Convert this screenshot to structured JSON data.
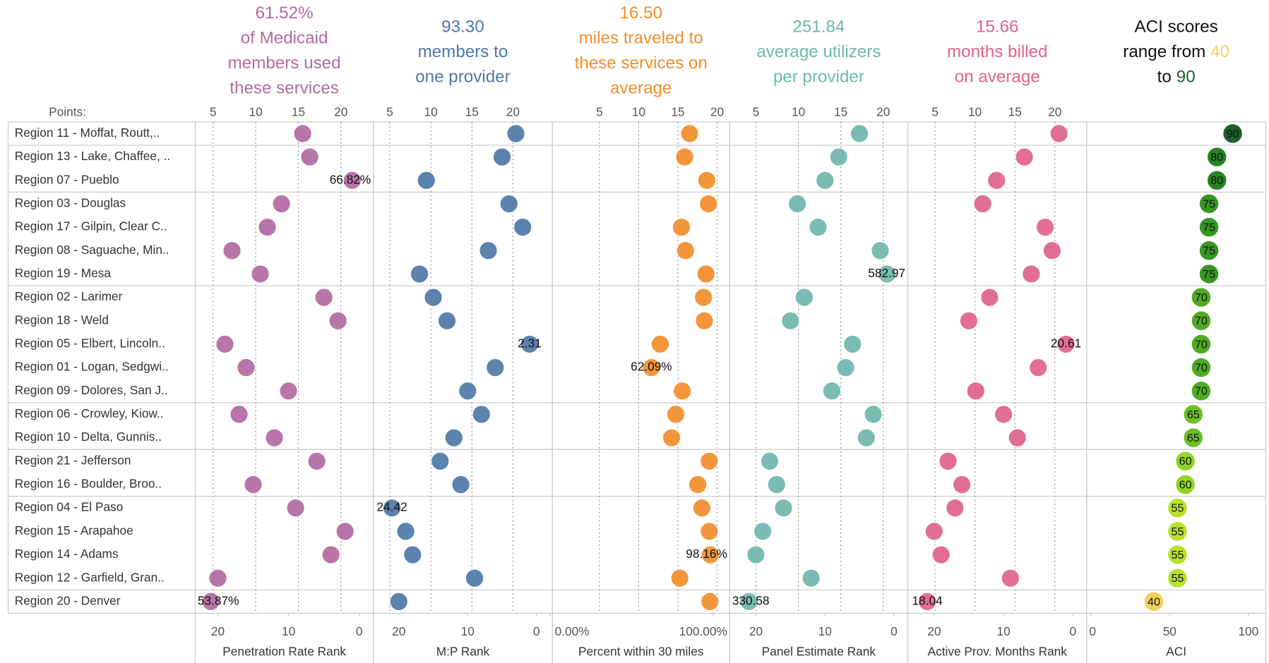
{
  "chart_data": [
    {
      "type": "dot",
      "title": "61.52%",
      "subtitle": [
        "of Medicaid",
        "members used",
        "these services"
      ],
      "points_label": "Points:",
      "categories": [
        "Region 11 - Moffat, Routt,..",
        "Region 13 - Lake, Chaffee, ..",
        "Region 07 - Pueblo",
        "Region 03 - Douglas",
        "Region 17 - Gilpin, Clear C..",
        "Region 08 - Saguache, Min..",
        "Region 19 - Mesa",
        "Region 02 - Larimer",
        "Region 18 - Weld",
        "Region 05 - Elbert, Lincoln..",
        "Region 01 - Logan, Sedgwi..",
        "Region 09 - Dolores, San J..",
        "Region 06 - Crowley, Kiow..",
        "Region 10 - Delta, Gunnis..",
        "Region 21 - Jefferson",
        "Region 16 - Boulder, Broo..",
        "Region 04 - El Paso",
        "Region 15 - Arapahoe",
        "Region 14 - Adams",
        "Region 12 - Garfield, Gran..",
        "Region 20 - Denver"
      ],
      "values": [
        8,
        7,
        1,
        11,
        13,
        18,
        14,
        5,
        3,
        19,
        16,
        10,
        17,
        12,
        6,
        15,
        9,
        2,
        4,
        20,
        21
      ],
      "color": "#b36aa0",
      "x_label": "Penetration Rate Rank",
      "xlim": [
        23.2,
        -2
      ],
      "xticks": [
        20,
        10,
        0
      ],
      "x2lim": [
        2.9,
        23.8
      ],
      "x2ticks": [
        5,
        10,
        15,
        20
      ],
      "annotations": [
        {
          "row": 2,
          "text": "66.82%"
        },
        {
          "row": 20,
          "text": "53.87%"
        }
      ]
    },
    {
      "type": "dot",
      "title": "93.30",
      "subtitle": [
        "members to",
        "one provider"
      ],
      "values": [
        3,
        5,
        16,
        4,
        2,
        7,
        17,
        15,
        13,
        1,
        6,
        10,
        8,
        12,
        14,
        11,
        21,
        19,
        18,
        9,
        20
      ],
      "color": "#4f78a8",
      "x_label": "M:P Rank",
      "xlim": [
        23.7,
        -2.3
      ],
      "xticks": [
        20,
        10,
        0
      ],
      "x2lim": [
        3,
        24.8
      ],
      "x2ticks": [
        5,
        10,
        15,
        20
      ],
      "annotations": [
        {
          "row": 9,
          "text": "2.31"
        },
        {
          "row": 16,
          "text": "24.42"
        }
      ]
    },
    {
      "type": "dot",
      "title": "16.50",
      "subtitle": [
        "miles traveled to",
        "these services on",
        "average"
      ],
      "values": [
        85.5,
        82.5,
        96,
        97,
        80.5,
        83,
        95.5,
        94,
        94.5,
        67.5,
        62.09,
        81,
        77,
        74.5,
        97.5,
        90.5,
        93,
        97.5,
        98.16,
        79.5,
        97.9
      ],
      "color": "#f28e2b",
      "x_label": "Percent within 30 miles",
      "xlim": [
        1.5,
        110
      ],
      "xticks": [
        {
          "value": 0,
          "label": "0.00%"
        },
        {
          "value": 100,
          "label": "100.00%"
        }
      ],
      "x2lim": [
        -1,
        21.6
      ],
      "x2ticks": [
        5,
        10,
        15,
        20
      ],
      "annotations": [
        {
          "row": 10,
          "text": "62.09%"
        },
        {
          "row": 18,
          "text": "98.16%"
        }
      ]
    },
    {
      "type": "dot",
      "title": "251.84",
      "subtitle": [
        "average utilizers",
        "per provider"
      ],
      "values": [
        5,
        8,
        10,
        14,
        11,
        2,
        1,
        13,
        15,
        6,
        7,
        9,
        3,
        4,
        18,
        17,
        16,
        19,
        20,
        12,
        21
      ],
      "color": "#6fb7ad",
      "x_label": "Panel Estimate Rank",
      "xlim": [
        23.8,
        -2
      ],
      "xticks": [
        20,
        10,
        0
      ],
      "x2lim": [
        1.9,
        22.9
      ],
      "x2ticks": [
        5,
        10,
        15,
        20
      ],
      "annotations": [
        {
          "row": 6,
          "text": "582.97"
        },
        {
          "row": 20,
          "text": "330.58"
        }
      ]
    },
    {
      "type": "dot",
      "title": "15.66",
      "subtitle": [
        "months billed",
        "on average"
      ],
      "values": [
        2,
        7,
        11,
        13,
        4,
        3,
        6,
        12,
        15,
        1,
        5,
        14,
        10,
        8,
        18,
        16,
        17,
        20,
        19,
        9,
        21
      ],
      "color": "#e0628a",
      "x_label": "Active Prov. Months Rank",
      "xlim": [
        23.8,
        -2
      ],
      "xticks": [
        20,
        10,
        0
      ],
      "x2lim": [
        1.6,
        24
      ],
      "x2ticks": [
        5,
        10,
        15,
        20
      ],
      "annotations": [
        {
          "row": 9,
          "text": "20.61"
        },
        {
          "row": 20,
          "text": "18.04"
        }
      ]
    },
    {
      "type": "aci",
      "title": "ACI scores",
      "subtitle": [
        "range from",
        "to"
      ],
      "values": [
        90,
        80,
        80,
        75,
        75,
        75,
        75,
        70,
        70,
        70,
        70,
        70,
        65,
        65,
        60,
        60,
        55,
        55,
        55,
        55,
        40
      ],
      "color_domain": [
        40,
        90
      ],
      "color_range": [
        "#f1d15a",
        "#1d5e2e"
      ],
      "x_label": "ACI",
      "xlim": [
        -2.6,
        111
      ],
      "xticks": [
        0,
        50,
        100
      ]
    }
  ]
}
